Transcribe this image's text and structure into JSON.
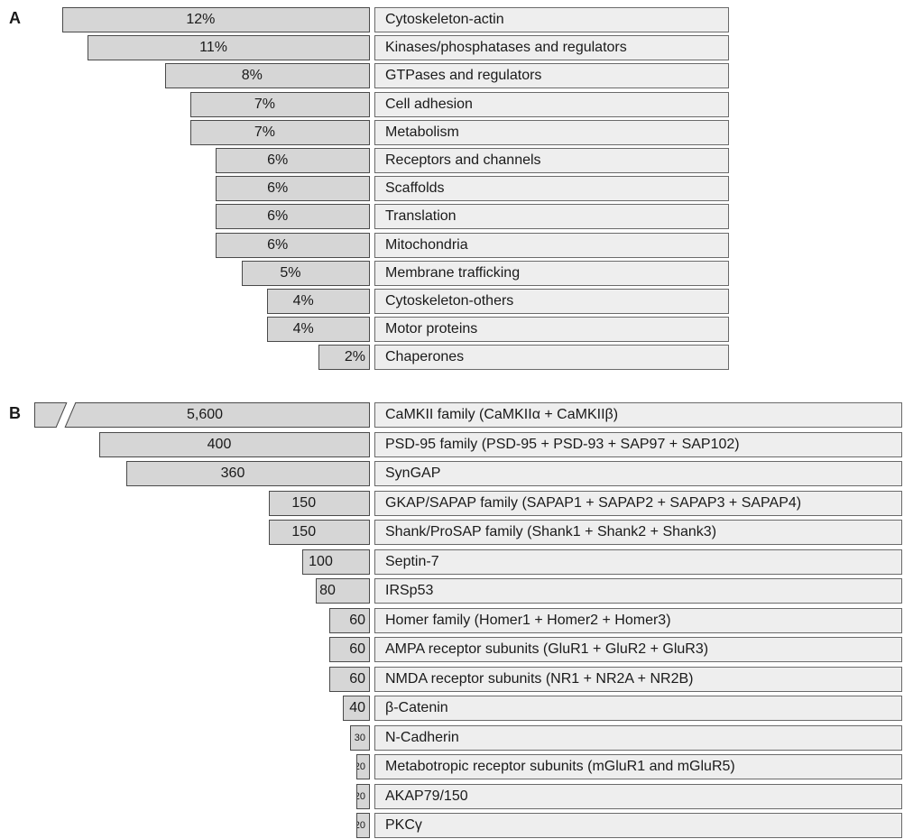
{
  "panels": [
    {
      "label": "A"
    },
    {
      "label": "B"
    }
  ],
  "chart_data": [
    {
      "type": "bar",
      "orientation": "horizontal",
      "categories": [
        "Cytoskeleton-actin",
        "Kinases/phosphatases and regulators",
        "GTPases and regulators",
        "Cell adhesion",
        "Metabolism",
        "Receptors and channels",
        "Scaffolds",
        "Translation",
        "Mitochondria",
        "Membrane trafficking",
        "Cytoskeleton-others",
        "Motor proteins",
        "Chaperones"
      ],
      "values": [
        12,
        11,
        8,
        7,
        7,
        6,
        6,
        6,
        6,
        5,
        4,
        4,
        2
      ],
      "value_labels": [
        "12%",
        "11%",
        "8%",
        "7%",
        "7%",
        "6%",
        "6%",
        "6%",
        "6%",
        "5%",
        "4%",
        "4%",
        "2%"
      ],
      "unit": "%",
      "xlim": [
        0,
        12.8
      ],
      "grid": false
    },
    {
      "type": "bar",
      "orientation": "horizontal",
      "axis_break": true,
      "categories": [
        "CaMKII family (CaMKIIα + CaMKIIβ)",
        "PSD-95 family (PSD-95 + PSD-93 + SAP97 + SAP102)",
        "SynGAP",
        "GKAP/SAPAP family (SAPAP1 + SAPAP2 + SAPAP3 + SAPAP4)",
        "Shank/ProSAP family (Shank1 + Shank2 + Shank3)",
        "Septin-7",
        "IRSp53",
        "Homer family (Homer1 + Homer2 + Homer3)",
        "AMPA receptor subunits (GluR1 + GluR2 + GluR3)",
        "NMDA receptor subunits (NR1 + NR2A + NR2B)",
        "β-Catenin",
        "N-Cadherin",
        "Metabotropic receptor subunits (mGluR1 and mGluR5)",
        "AKAP79/150",
        "PKCγ"
      ],
      "values": [
        5600,
        400,
        360,
        150,
        150,
        100,
        80,
        60,
        60,
        60,
        40,
        30,
        20,
        20,
        20
      ],
      "value_labels": [
        "5,600",
        "400",
        "360",
        "150",
        "150",
        "100",
        "80",
        "60",
        "60",
        "60",
        "40",
        "30",
        "20",
        "20",
        "20"
      ],
      "xlim": [
        0,
        440
      ],
      "grid": false
    }
  ]
}
